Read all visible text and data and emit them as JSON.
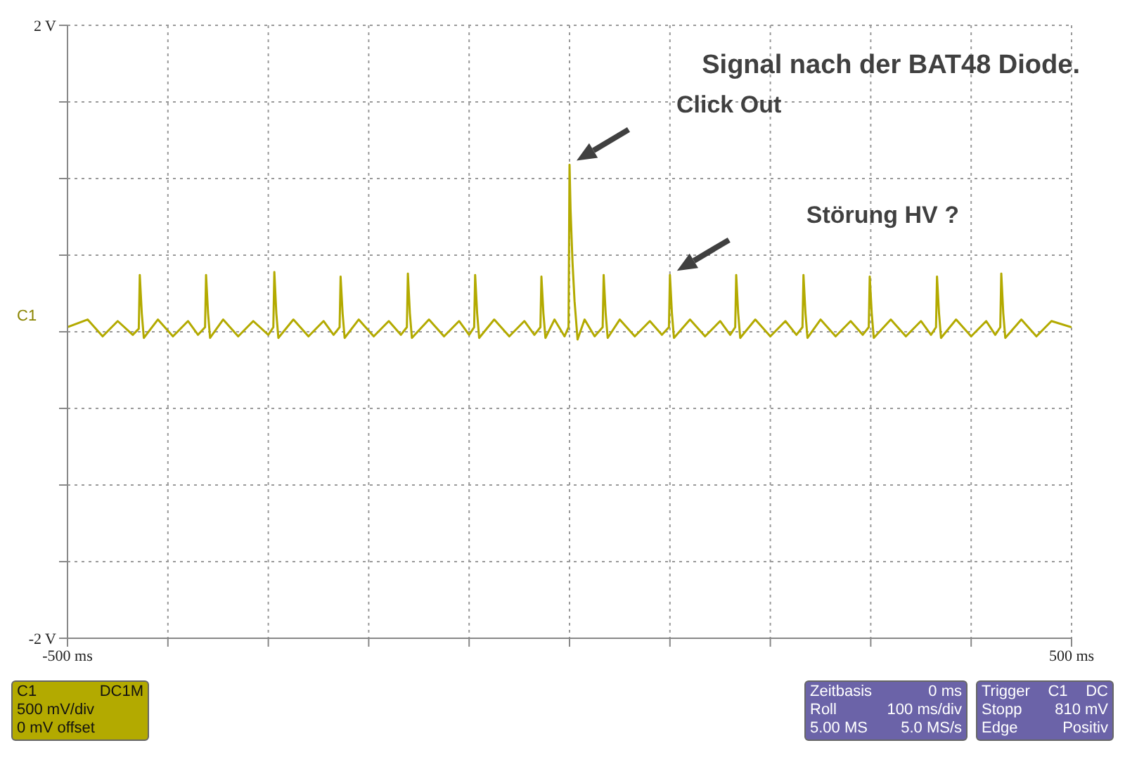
{
  "chart_data": {
    "type": "line",
    "title": "Signal nach der BAT48 Diode.",
    "x": [
      -500,
      -480,
      -465,
      -450,
      -435,
      -429,
      -428,
      -426,
      -424,
      -410,
      -395,
      -380,
      -370,
      -363,
      -362,
      -360,
      -358,
      -345,
      -330,
      -315,
      -300,
      -295,
      -294,
      -292,
      -290,
      -275,
      -260,
      -245,
      -235,
      -229,
      -228,
      -226,
      -224,
      -210,
      -195,
      -180,
      -168,
      -162,
      -161,
      -159,
      -157,
      -140,
      -125,
      -110,
      -100,
      -95,
      -94,
      -92,
      -90,
      -75,
      -60,
      -45,
      -35,
      -29,
      -28,
      -26,
      -24,
      -15,
      -5,
      -1,
      0,
      1,
      3,
      5,
      8,
      15,
      25,
      33,
      34,
      36,
      38,
      50,
      65,
      80,
      92,
      99,
      100,
      102,
      104,
      120,
      135,
      150,
      160,
      165,
      166,
      168,
      170,
      185,
      200,
      215,
      226,
      232,
      233,
      235,
      237,
      250,
      265,
      280,
      292,
      298,
      299,
      301,
      303,
      320,
      335,
      350,
      360,
      365,
      366,
      368,
      370,
      385,
      400,
      415,
      424,
      429,
      430,
      432,
      434,
      450,
      465,
      480,
      500
    ],
    "series": [
      {
        "color": "#b3aa00",
        "values": [
          0.03,
          0.08,
          -0.03,
          0.07,
          -0.02,
          0.02,
          0.37,
          0.12,
          -0.04,
          0.08,
          -0.03,
          0.07,
          -0.02,
          0.03,
          0.37,
          0.12,
          -0.04,
          0.08,
          -0.03,
          0.07,
          -0.02,
          0.03,
          0.39,
          0.12,
          -0.04,
          0.08,
          -0.03,
          0.07,
          -0.02,
          0.03,
          0.36,
          0.12,
          -0.04,
          0.08,
          -0.03,
          0.07,
          -0.02,
          0.03,
          0.38,
          0.12,
          -0.04,
          0.08,
          -0.03,
          0.07,
          -0.02,
          0.03,
          0.37,
          0.12,
          -0.04,
          0.08,
          -0.03,
          0.07,
          -0.02,
          0.03,
          0.36,
          0.12,
          -0.04,
          0.08,
          -0.03,
          0.03,
          1.09,
          0.8,
          0.45,
          0.2,
          -0.05,
          0.08,
          -0.03,
          0.03,
          0.37,
          0.12,
          -0.04,
          0.08,
          -0.03,
          0.07,
          -0.02,
          0.03,
          0.37,
          0.12,
          -0.04,
          0.08,
          -0.03,
          0.07,
          -0.02,
          0.03,
          0.37,
          0.12,
          -0.04,
          0.08,
          -0.03,
          0.07,
          -0.02,
          0.03,
          0.37,
          0.12,
          -0.04,
          0.08,
          -0.03,
          0.07,
          -0.02,
          0.03,
          0.36,
          0.12,
          -0.04,
          0.08,
          -0.03,
          0.07,
          -0.02,
          0.03,
          0.36,
          0.12,
          -0.04,
          0.08,
          -0.03,
          0.07,
          -0.02,
          0.03,
          0.38,
          0.12,
          -0.04,
          0.08,
          -0.03,
          0.07,
          0.03
        ]
      }
    ],
    "xlim": [
      -500,
      500
    ],
    "xticks": [
      {
        "value": -500,
        "label": "-500 ms"
      },
      {
        "value": -400,
        "label": null
      },
      {
        "value": -300,
        "label": null
      },
      {
        "value": -200,
        "label": null
      },
      {
        "value": -100,
        "label": null
      },
      {
        "value": 0,
        "label": null
      },
      {
        "value": 100,
        "label": null
      },
      {
        "value": 200,
        "label": null
      },
      {
        "value": 300,
        "label": null
      },
      {
        "value": 400,
        "label": null
      },
      {
        "value": 500,
        "label": "500 ms"
      }
    ],
    "ylim": [
      -2,
      2
    ],
    "yticks": [
      {
        "value": -2,
        "label": "-2 V"
      },
      {
        "value": -1.5,
        "label": null
      },
      {
        "value": -1,
        "label": null
      },
      {
        "value": -0.5,
        "label": null
      },
      {
        "value": 0,
        "label": null
      },
      {
        "value": 0.5,
        "label": null
      },
      {
        "value": 1,
        "label": null
      },
      {
        "value": 1.5,
        "label": null
      },
      {
        "value": 2,
        "label": "2 V"
      }
    ],
    "grid": true,
    "marker": "none",
    "line_style": "solid",
    "annotations": [
      "Click Out",
      "Störung HV ?",
      "C1",
      "C1",
      "DC1M",
      "500 mV/div",
      "0 mV offset",
      "Zeitbasis",
      "0 ms",
      "Roll",
      "100 ms/div",
      "5.00 MS",
      "5.0 MS/s",
      "Trigger",
      "C1",
      "DC",
      "Stopp",
      "810 mV",
      "Edge",
      "Positiv"
    ]
  }
}
